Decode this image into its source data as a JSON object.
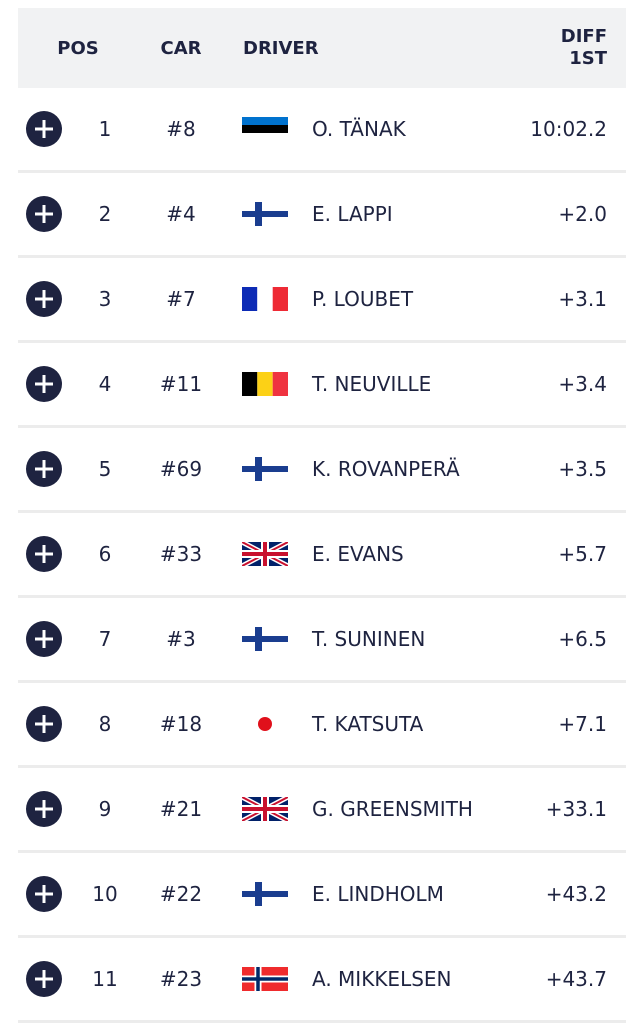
{
  "header": {
    "pos": "POS",
    "car": "CAR",
    "driver": "DRIVER",
    "diff": "DIFF 1ST"
  },
  "rows": [
    [
      "1",
      "#8",
      "O. TÄNAK",
      "10:02.2"
    ],
    [
      "2",
      "#4",
      "E. LAPPI",
      "+2.0"
    ],
    [
      "3",
      "#7",
      "P. LOUBET",
      "+3.1"
    ],
    [
      "4",
      "#11",
      "T. NEUVILLE",
      "+3.4"
    ],
    [
      "5",
      "#69",
      "K. ROVANPERÄ",
      "+3.5"
    ],
    [
      "6",
      "#33",
      "E. EVANS",
      "+5.7"
    ],
    [
      "7",
      "#3",
      "T. SUNINEN",
      "+6.5"
    ],
    [
      "8",
      "#18",
      "T. KATSUTA",
      "+7.1"
    ],
    [
      "9",
      "#21",
      "G. GREENSMITH",
      "+33.1"
    ],
    [
      "10",
      "#22",
      "E. LINDHOLM",
      "+43.2"
    ],
    [
      "11",
      "#23",
      "A. MIKKELSEN",
      "+43.7"
    ]
  ]
}
